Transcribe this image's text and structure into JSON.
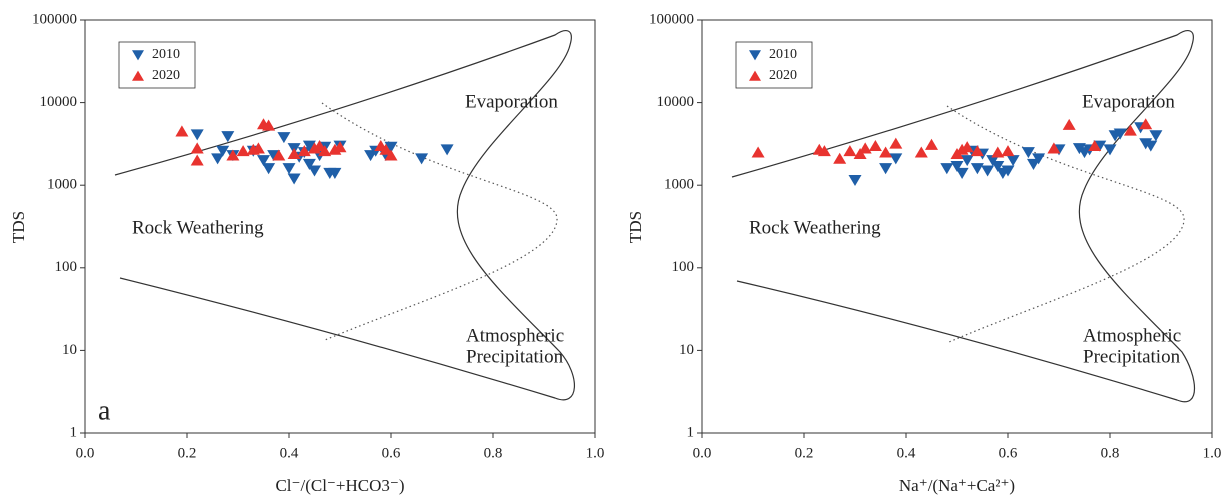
{
  "chart_data": [
    {
      "type": "scatter",
      "xlabel": "Cl⁻/(Cl⁻+HCO3⁻)",
      "ylabel": "TDS",
      "panel_label": "a",
      "annotations": [
        "Evaporation",
        "Rock Weathering",
        "Atmospheric",
        "Precipitation"
      ],
      "xlim": [
        0,
        1
      ],
      "ylim": [
        1,
        100000
      ],
      "yscale": "log",
      "legend": "upper left",
      "xticks": [
        {
          "value": 0,
          "label": "0.0"
        },
        {
          "value": 0.2,
          "label": "0.2"
        },
        {
          "value": 0.4,
          "label": "0.4"
        },
        {
          "value": 0.6,
          "label": "0.6"
        },
        {
          "value": 0.8,
          "label": "0.8"
        },
        {
          "value": 1,
          "label": "1.0"
        }
      ],
      "yticks": [
        1,
        10,
        100,
        1000,
        10000,
        100000
      ],
      "series": [
        {
          "name": "2010",
          "color": "#1f5fa8",
          "marker": "down",
          "x": [
            0.22,
            0.26,
            0.27,
            0.28,
            0.29,
            0.33,
            0.35,
            0.36,
            0.37,
            0.39,
            0.4,
            0.41,
            0.41,
            0.42,
            0.43,
            0.44,
            0.45,
            0.46,
            0.47,
            0.48,
            0.49,
            0.5,
            0.56,
            0.57,
            0.59,
            0.6,
            0.66,
            0.71,
            0.44
          ],
          "values": [
            4100,
            2100,
            2600,
            3900,
            2300,
            2600,
            2000,
            1600,
            2300,
            3800,
            1600,
            1200,
            2800,
            2200,
            2500,
            1800,
            1500,
            2300,
            2900,
            1400,
            1400,
            3000,
            2300,
            2600,
            2300,
            2900,
            2100,
            2700,
            3000
          ]
        },
        {
          "name": "2020",
          "color": "#e8332f",
          "marker": "up",
          "x": [
            0.19,
            0.22,
            0.22,
            0.29,
            0.31,
            0.33,
            0.34,
            0.35,
            0.36,
            0.38,
            0.41,
            0.43,
            0.45,
            0.46,
            0.47,
            0.49,
            0.5,
            0.58,
            0.59,
            0.6
          ],
          "values": [
            4500,
            2000,
            2800,
            2300,
            2600,
            2700,
            2800,
            5500,
            5300,
            2300,
            2400,
            2600,
            2800,
            3000,
            2600,
            2700,
            2900,
            3000,
            2700,
            2300
          ]
        }
      ]
    },
    {
      "type": "scatter",
      "xlabel": "Na⁺/(Na⁺+Ca²⁺)",
      "ylabel": "TDS",
      "annotations": [
        "Evaporation",
        "Rock Weathering",
        "Atmospheric",
        "Precipitation"
      ],
      "xlim": [
        0,
        1
      ],
      "ylim": [
        1,
        100000
      ],
      "yscale": "log",
      "legend": "upper left",
      "xticks": [
        {
          "value": 0,
          "label": "0.0"
        },
        {
          "value": 0.2,
          "label": "0.2"
        },
        {
          "value": 0.4,
          "label": "0.4"
        },
        {
          "value": 0.6,
          "label": "0.6"
        },
        {
          "value": 0.8,
          "label": "0.8"
        },
        {
          "value": 1,
          "label": "1.0"
        }
      ],
      "yticks": [
        1,
        10,
        100,
        1000,
        10000,
        100000
      ],
      "series": [
        {
          "name": "2010",
          "color": "#1f5fa8",
          "marker": "down",
          "x": [
            0.3,
            0.36,
            0.38,
            0.48,
            0.5,
            0.51,
            0.52,
            0.53,
            0.54,
            0.55,
            0.56,
            0.57,
            0.58,
            0.59,
            0.6,
            0.61,
            0.64,
            0.65,
            0.66,
            0.7,
            0.74,
            0.75,
            0.76,
            0.78,
            0.8,
            0.81,
            0.82,
            0.86,
            0.87,
            0.88,
            0.89
          ],
          "values": [
            1150,
            1600,
            2100,
            1600,
            1700,
            1400,
            2000,
            2600,
            1600,
            2400,
            1500,
            2000,
            1700,
            1400,
            1500,
            2000,
            2500,
            1800,
            2100,
            2700,
            2800,
            2500,
            2700,
            3000,
            2700,
            4000,
            4200,
            5000,
            3200,
            3000,
            4000
          ]
        },
        {
          "name": "2020",
          "color": "#e8332f",
          "marker": "up",
          "x": [
            0.11,
            0.23,
            0.24,
            0.27,
            0.29,
            0.31,
            0.32,
            0.34,
            0.36,
            0.38,
            0.43,
            0.45,
            0.5,
            0.51,
            0.52,
            0.54,
            0.58,
            0.6,
            0.69,
            0.72,
            0.77,
            0.84,
            0.87
          ],
          "values": [
            2500,
            2700,
            2600,
            2100,
            2600,
            2400,
            2800,
            3000,
            2500,
            3200,
            2500,
            3100,
            2400,
            2700,
            2900,
            2600,
            2500,
            2600,
            2800,
            5400,
            3000,
            4600,
            5500
          ]
        }
      ]
    }
  ]
}
